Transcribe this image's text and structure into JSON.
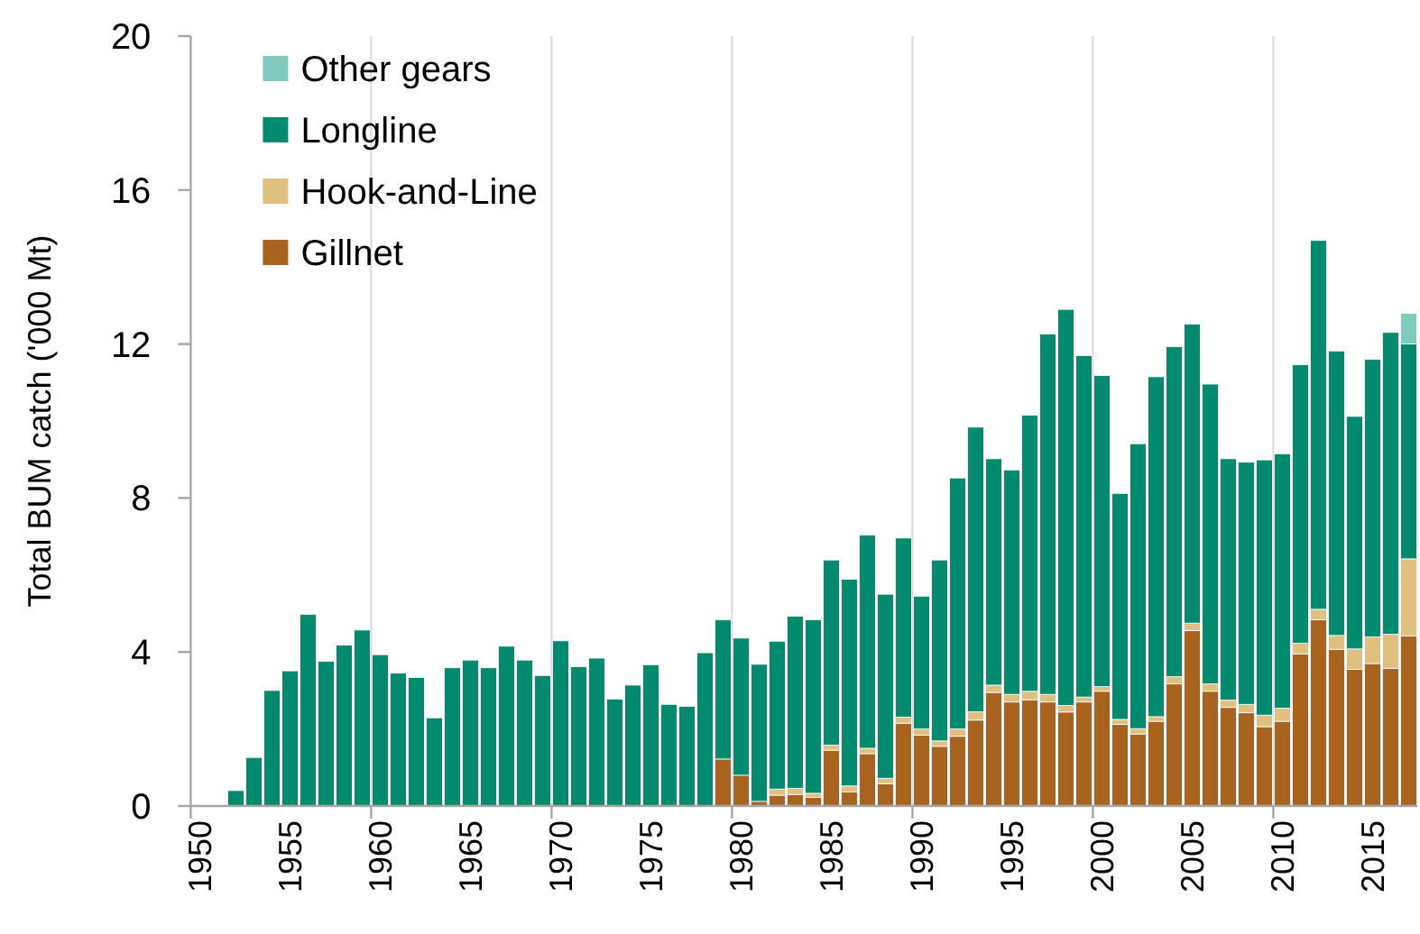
{
  "chart_data": {
    "type": "bar",
    "stacked": true,
    "ylabel": "Total BUM catch ('000 Mt)",
    "categories": [
      "1950",
      null,
      null,
      null,
      null,
      "1955",
      null,
      null,
      null,
      null,
      "1960",
      null,
      null,
      null,
      null,
      "1965",
      null,
      null,
      null,
      null,
      "1970",
      null,
      null,
      null,
      null,
      "1975",
      null,
      null,
      null,
      null,
      "1980",
      null,
      null,
      null,
      null,
      "1985",
      null,
      null,
      null,
      null,
      "1990",
      null,
      null,
      null,
      null,
      "1995",
      null,
      null,
      null,
      null,
      "2000",
      null,
      null,
      null,
      null,
      "2005",
      null,
      null,
      null,
      null,
      "2010",
      null,
      null,
      null,
      null,
      "2015",
      null,
      null
    ],
    "series": [
      {
        "name": "Gillnet",
        "color": "#a8641e",
        "values": [
          0,
          0,
          0,
          0,
          0,
          0,
          0,
          0,
          0,
          0,
          0,
          0,
          0,
          0,
          0,
          0,
          0,
          0,
          0,
          0,
          0,
          0,
          0,
          0,
          0,
          0,
          0,
          0,
          0,
          1.22,
          0.8,
          0.12,
          0.28,
          0.3,
          0.22,
          1.45,
          0.37,
          1.36,
          0.58,
          2.15,
          1.84,
          1.55,
          1.81,
          2.23,
          2.95,
          2.7,
          2.76,
          2.7,
          2.44,
          2.7,
          2.98,
          2.12,
          1.87,
          2.2,
          3.17,
          4.56,
          2.98,
          2.56,
          2.42,
          2.06,
          2.2,
          3.95,
          4.84,
          4.07,
          3.55,
          3.7,
          3.57,
          4.42
        ]
      },
      {
        "name": "Hook-and-Line",
        "color": "#dfc07e",
        "values": [
          0,
          0,
          0,
          0,
          0,
          0,
          0,
          0,
          0,
          0,
          0,
          0,
          0,
          0,
          0,
          0,
          0,
          0,
          0,
          0,
          0,
          0,
          0,
          0,
          0,
          0,
          0,
          0,
          0,
          0,
          0,
          0,
          0.16,
          0.16,
          0.11,
          0.13,
          0.15,
          0.14,
          0.14,
          0.16,
          0.16,
          0.14,
          0.19,
          0.22,
          0.19,
          0.2,
          0.22,
          0.2,
          0.17,
          0.13,
          0.12,
          0.13,
          0.14,
          0.12,
          0.19,
          0.19,
          0.19,
          0.19,
          0.22,
          0.3,
          0.34,
          0.28,
          0.27,
          0.36,
          0.53,
          0.69,
          0.89,
          2.0
        ]
      },
      {
        "name": "Longline",
        "color": "#008a6e",
        "values": [
          0,
          0,
          0.4,
          1.26,
          3.0,
          3.51,
          4.98,
          3.76,
          4.18,
          4.57,
          3.93,
          3.45,
          3.34,
          2.29,
          3.59,
          3.79,
          3.59,
          4.15,
          3.79,
          3.39,
          4.29,
          3.62,
          3.84,
          2.78,
          3.14,
          3.67,
          2.64,
          2.59,
          3.98,
          3.62,
          3.56,
          3.56,
          3.84,
          4.47,
          4.51,
          4.81,
          5.37,
          5.54,
          4.78,
          4.65,
          3.45,
          4.7,
          6.52,
          7.39,
          5.88,
          5.83,
          7.17,
          9.36,
          10.29,
          8.87,
          8.08,
          5.87,
          7.4,
          8.83,
          8.57,
          7.77,
          7.79,
          6.27,
          6.29,
          6.63,
          6.61,
          7.23,
          9.58,
          7.39,
          6.04,
          7.21,
          7.84,
          5.58
        ]
      },
      {
        "name": "Other gears",
        "color": "#80cbbd",
        "values": [
          0,
          0,
          0,
          0,
          0,
          0,
          0,
          0,
          0,
          0,
          0,
          0,
          0,
          0,
          0,
          0,
          0,
          0,
          0,
          0,
          0,
          0,
          0,
          0,
          0,
          0,
          0,
          0,
          0,
          0,
          0,
          0,
          0,
          0,
          0,
          0,
          0,
          0,
          0,
          0,
          0,
          0,
          0,
          0,
          0,
          0,
          0,
          0,
          0,
          0,
          0,
          0,
          0,
          0,
          0,
          0,
          0,
          0,
          0,
          0,
          0,
          0,
          0,
          0,
          0,
          0,
          0,
          0.8
        ]
      }
    ],
    "ylim": [
      0,
      20
    ],
    "yticks": [
      0,
      4,
      8,
      12,
      16,
      20
    ],
    "grid": "x",
    "legend": "top left"
  }
}
